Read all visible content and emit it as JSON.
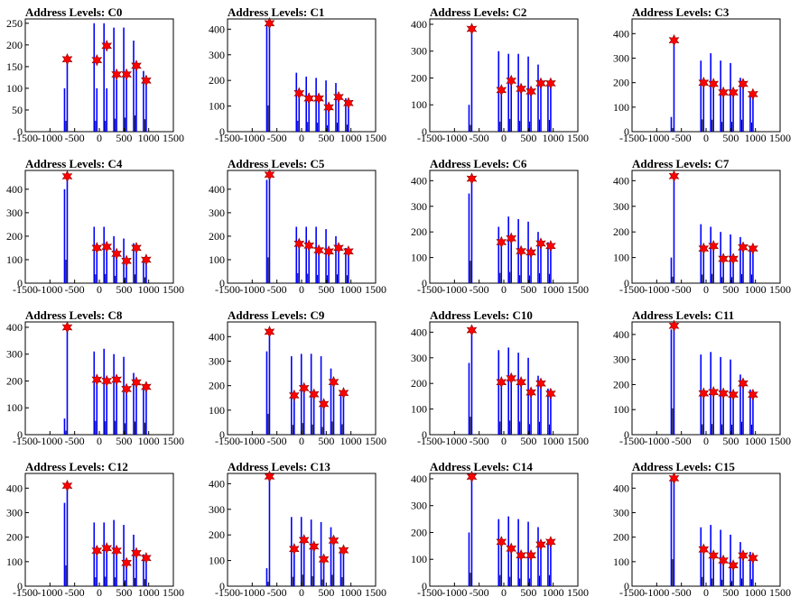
{
  "chart_data": [
    {
      "type": "bar",
      "title": "Address Levels: C0",
      "xlim": [
        -1500,
        1500
      ],
      "ylim": [
        0,
        260
      ],
      "yticks": [
        0,
        50,
        100,
        150,
        200,
        250
      ],
      "xticks": [
        -1500,
        -1000,
        -500,
        0,
        500,
        1000,
        1500
      ],
      "peak_x": [
        -650,
        -50,
        150,
        350,
        550,
        750,
        950
      ],
      "peak_values": [
        167,
        165,
        198,
        132,
        132,
        152,
        118
      ],
      "bar_heights": [
        [
          100,
          160
        ],
        [
          250,
          100
        ],
        [
          250,
          100
        ],
        [
          240,
          120
        ],
        [
          240,
          130
        ],
        [
          210,
          150
        ],
        [
          140,
          115
        ]
      ]
    },
    {
      "type": "bar",
      "title": "Address Levels: C1",
      "xlim": [
        -1500,
        1500
      ],
      "ylim": [
        0,
        440
      ],
      "yticks": [
        0,
        100,
        200,
        300,
        400
      ],
      "xticks": [
        -1500,
        -1000,
        -500,
        0,
        500,
        1000,
        1500
      ],
      "peak_x": [
        -650,
        -50,
        150,
        350,
        550,
        750,
        950
      ],
      "peak_values": [
        423,
        150,
        130,
        130,
        95,
        135,
        112
      ],
      "bar_heights": [
        [
          420,
          410
        ],
        [
          230,
          170
        ],
        [
          215,
          150
        ],
        [
          210,
          140
        ],
        [
          200,
          100
        ],
        [
          190,
          140
        ],
        [
          130,
          110
        ]
      ]
    },
    {
      "type": "bar",
      "title": "Address Levels: C2",
      "xlim": [
        -1500,
        1500
      ],
      "ylim": [
        0,
        420
      ],
      "yticks": [
        0,
        100,
        200,
        300,
        400
      ],
      "xticks": [
        -1500,
        -1000,
        -500,
        0,
        500,
        1000,
        1500
      ],
      "peak_x": [
        -650,
        -50,
        150,
        350,
        550,
        750,
        950
      ],
      "peak_values": [
        383,
        155,
        190,
        160,
        150,
        180,
        180
      ],
      "bar_heights": [
        [
          100,
          380
        ],
        [
          300,
          150
        ],
        [
          290,
          190
        ],
        [
          290,
          160
        ],
        [
          280,
          150
        ],
        [
          250,
          180
        ],
        [
          180,
          175
        ]
      ]
    },
    {
      "type": "bar",
      "title": "Address Levels: C3",
      "xlim": [
        -1500,
        1500
      ],
      "ylim": [
        0,
        460
      ],
      "yticks": [
        0,
        100,
        200,
        300,
        400
      ],
      "xticks": [
        -1500,
        -1000,
        -500,
        0,
        500,
        1000,
        1500
      ],
      "peak_x": [
        -650,
        -50,
        150,
        350,
        550,
        750,
        950
      ],
      "peak_values": [
        373,
        200,
        195,
        160,
        160,
        195,
        153
      ],
      "bar_heights": [
        [
          60,
          370
        ],
        [
          290,
          200
        ],
        [
          320,
          195
        ],
        [
          290,
          160
        ],
        [
          280,
          160
        ],
        [
          220,
          195
        ],
        [
          160,
          150
        ]
      ]
    },
    {
      "type": "bar",
      "title": "Address Levels: C4",
      "xlim": [
        -1500,
        1500
      ],
      "ylim": [
        0,
        480
      ],
      "yticks": [
        0,
        100,
        200,
        300,
        400
      ],
      "xticks": [
        -1500,
        -1000,
        -500,
        0,
        500,
        1000,
        1500
      ],
      "peak_x": [
        -650,
        -50,
        150,
        350,
        550,
        750,
        950
      ],
      "peak_values": [
        455,
        150,
        155,
        125,
        95,
        150,
        100
      ],
      "bar_heights": [
        [
          400,
          450
        ],
        [
          240,
          150
        ],
        [
          240,
          155
        ],
        [
          200,
          125
        ],
        [
          190,
          95
        ],
        [
          170,
          150
        ],
        [
          110,
          100
        ]
      ]
    },
    {
      "type": "bar",
      "title": "Address Levels: C5",
      "xlim": [
        -1500,
        1500
      ],
      "ylim": [
        0,
        480
      ],
      "yticks": [
        0,
        100,
        200,
        300,
        400
      ],
      "xticks": [
        -1500,
        -1000,
        -500,
        0,
        500,
        1000,
        1500
      ],
      "peak_x": [
        -650,
        -50,
        150,
        350,
        550,
        750,
        950
      ],
      "peak_values": [
        462,
        168,
        160,
        140,
        135,
        150,
        135
      ],
      "bar_heights": [
        [
          440,
          460
        ],
        [
          240,
          170
        ],
        [
          240,
          160
        ],
        [
          240,
          140
        ],
        [
          230,
          135
        ],
        [
          200,
          150
        ],
        [
          150,
          135
        ]
      ]
    },
    {
      "type": "bar",
      "title": "Address Levels: C6",
      "xlim": [
        -1500,
        1500
      ],
      "ylim": [
        0,
        440
      ],
      "yticks": [
        0,
        100,
        200,
        300,
        400
      ],
      "xticks": [
        -1500,
        -1000,
        -500,
        0,
        500,
        1000,
        1500
      ],
      "peak_x": [
        -650,
        -50,
        150,
        350,
        550,
        750,
        950
      ],
      "peak_values": [
        408,
        160,
        175,
        125,
        120,
        155,
        145
      ],
      "bar_heights": [
        [
          350,
          405
        ],
        [
          220,
          160
        ],
        [
          260,
          175
        ],
        [
          250,
          125
        ],
        [
          240,
          120
        ],
        [
          200,
          155
        ],
        [
          160,
          145
        ]
      ]
    },
    {
      "type": "bar",
      "title": "Address Levels: C7",
      "xlim": [
        -1500,
        1500
      ],
      "ylim": [
        0,
        440
      ],
      "yticks": [
        0,
        100,
        200,
        300,
        400
      ],
      "xticks": [
        -1500,
        -1000,
        -500,
        0,
        500,
        1000,
        1500
      ],
      "peak_x": [
        -650,
        -50,
        150,
        350,
        550,
        750,
        950
      ],
      "peak_values": [
        418,
        135,
        145,
        95,
        95,
        140,
        135
      ],
      "bar_heights": [
        [
          100,
          415
        ],
        [
          230,
          135
        ],
        [
          220,
          145
        ],
        [
          200,
          95
        ],
        [
          190,
          95
        ],
        [
          180,
          140
        ],
        [
          140,
          135
        ]
      ]
    },
    {
      "type": "bar",
      "title": "Address Levels: C8",
      "xlim": [
        -1500,
        1500
      ],
      "ylim": [
        0,
        420
      ],
      "yticks": [
        0,
        100,
        200,
        300,
        400
      ],
      "xticks": [
        -1500,
        -1000,
        -500,
        0,
        500,
        1000,
        1500
      ],
      "peak_x": [
        -650,
        -50,
        150,
        350,
        550,
        750,
        950
      ],
      "peak_values": [
        400,
        205,
        200,
        205,
        170,
        195,
        178
      ],
      "bar_heights": [
        [
          60,
          400
        ],
        [
          310,
          205
        ],
        [
          320,
          200
        ],
        [
          300,
          205
        ],
        [
          290,
          170
        ],
        [
          230,
          195
        ],
        [
          180,
          178
        ]
      ]
    },
    {
      "type": "bar",
      "title": "Address Levels: C9",
      "xlim": [
        -1500,
        1500
      ],
      "ylim": [
        0,
        460
      ],
      "yticks": [
        0,
        100,
        200,
        300,
        400
      ],
      "xticks": [
        -1500,
        -1000,
        -500,
        0,
        500,
        1000,
        1500
      ],
      "peak_x": [
        -650,
        -150,
        50,
        250,
        450,
        650,
        850
      ],
      "peak_values": [
        420,
        160,
        190,
        165,
        125,
        215,
        170
      ],
      "bar_heights": [
        [
          340,
          420
        ],
        [
          320,
          160
        ],
        [
          330,
          190
        ],
        [
          330,
          165
        ],
        [
          320,
          125
        ],
        [
          270,
          215
        ],
        [
          180,
          170
        ]
      ]
    },
    {
      "type": "bar",
      "title": "Address Levels: C10",
      "xlim": [
        -1500,
        1500
      ],
      "ylim": [
        0,
        440
      ],
      "yticks": [
        0,
        100,
        200,
        300,
        400
      ],
      "xticks": [
        -1500,
        -1000,
        -500,
        0,
        500,
        1000,
        1500
      ],
      "peak_x": [
        -650,
        -50,
        150,
        350,
        550,
        750,
        950
      ],
      "peak_values": [
        408,
        205,
        220,
        205,
        165,
        200,
        160
      ],
      "bar_heights": [
        [
          280,
          405
        ],
        [
          330,
          205
        ],
        [
          340,
          220
        ],
        [
          320,
          205
        ],
        [
          300,
          165
        ],
        [
          230,
          200
        ],
        [
          180,
          160
        ]
      ]
    },
    {
      "type": "bar",
      "title": "Address Levels: C11",
      "xlim": [
        -1500,
        1500
      ],
      "ylim": [
        0,
        450
      ],
      "yticks": [
        0,
        100,
        200,
        300,
        400
      ],
      "xticks": [
        -1500,
        -1000,
        -500,
        0,
        500,
        1000,
        1500
      ],
      "peak_x": [
        -650,
        -50,
        150,
        350,
        550,
        750,
        950
      ],
      "peak_values": [
        435,
        165,
        170,
        165,
        160,
        205,
        160
      ],
      "bar_heights": [
        [
          420,
          435
        ],
        [
          320,
          165
        ],
        [
          330,
          170
        ],
        [
          310,
          165
        ],
        [
          300,
          160
        ],
        [
          240,
          205
        ],
        [
          180,
          160
        ]
      ]
    },
    {
      "type": "bar",
      "title": "Address Levels: C12",
      "xlim": [
        -1500,
        1500
      ],
      "ylim": [
        0,
        460
      ],
      "yticks": [
        0,
        100,
        200,
        300,
        400
      ],
      "xticks": [
        -1500,
        -1000,
        -500,
        0,
        500,
        1000,
        1500
      ],
      "peak_x": [
        -650,
        -50,
        150,
        350,
        550,
        750,
        950
      ],
      "peak_values": [
        410,
        145,
        155,
        145,
        95,
        135,
        115
      ],
      "bar_heights": [
        [
          340,
          410
        ],
        [
          260,
          145
        ],
        [
          260,
          155
        ],
        [
          270,
          145
        ],
        [
          250,
          95
        ],
        [
          210,
          135
        ],
        [
          130,
          115
        ]
      ]
    },
    {
      "type": "bar",
      "title": "Address Levels: C13",
      "xlim": [
        -1500,
        1500
      ],
      "ylim": [
        0,
        440
      ],
      "yticks": [
        0,
        100,
        200,
        300,
        400
      ],
      "xticks": [
        -1500,
        -1000,
        -500,
        0,
        500,
        1000,
        1500
      ],
      "peak_x": [
        -650,
        -150,
        50,
        250,
        450,
        650,
        850
      ],
      "peak_values": [
        428,
        145,
        180,
        155,
        105,
        178,
        140
      ],
      "bar_heights": [
        [
          70,
          425
        ],
        [
          270,
          145
        ],
        [
          270,
          180
        ],
        [
          260,
          155
        ],
        [
          250,
          105
        ],
        [
          230,
          178
        ],
        [
          150,
          140
        ]
      ]
    },
    {
      "type": "bar",
      "title": "Address Levels: C14",
      "xlim": [
        -1500,
        1500
      ],
      "ylim": [
        0,
        420
      ],
      "yticks": [
        0,
        100,
        200,
        300,
        400
      ],
      "xticks": [
        -1500,
        -1000,
        -500,
        0,
        500,
        1000,
        1500
      ],
      "peak_x": [
        -650,
        -50,
        150,
        350,
        550,
        750,
        950
      ],
      "peak_values": [
        408,
        165,
        140,
        115,
        115,
        155,
        165
      ],
      "bar_heights": [
        [
          200,
          405
        ],
        [
          250,
          165
        ],
        [
          260,
          140
        ],
        [
          250,
          115
        ],
        [
          240,
          115
        ],
        [
          220,
          155
        ],
        [
          170,
          165
        ]
      ]
    },
    {
      "type": "bar",
      "title": "Address Levels: C15",
      "xlim": [
        -1500,
        1500
      ],
      "ylim": [
        0,
        460
      ],
      "yticks": [
        0,
        100,
        200,
        300,
        400
      ],
      "xticks": [
        -1500,
        -1000,
        -500,
        0,
        500,
        1000,
        1500
      ],
      "peak_x": [
        -650,
        -50,
        150,
        350,
        550,
        750,
        950
      ],
      "peak_values": [
        440,
        150,
        125,
        105,
        85,
        125,
        115
      ],
      "bar_heights": [
        [
          440,
          440
        ],
        [
          240,
          150
        ],
        [
          250,
          125
        ],
        [
          230,
          105
        ],
        [
          210,
          85
        ],
        [
          180,
          125
        ],
        [
          140,
          115
        ]
      ]
    }
  ],
  "colors": {
    "bar": "#0000ff",
    "marker": "#ff0000",
    "marker_edge": "#8b0000",
    "frame": "#000000"
  }
}
